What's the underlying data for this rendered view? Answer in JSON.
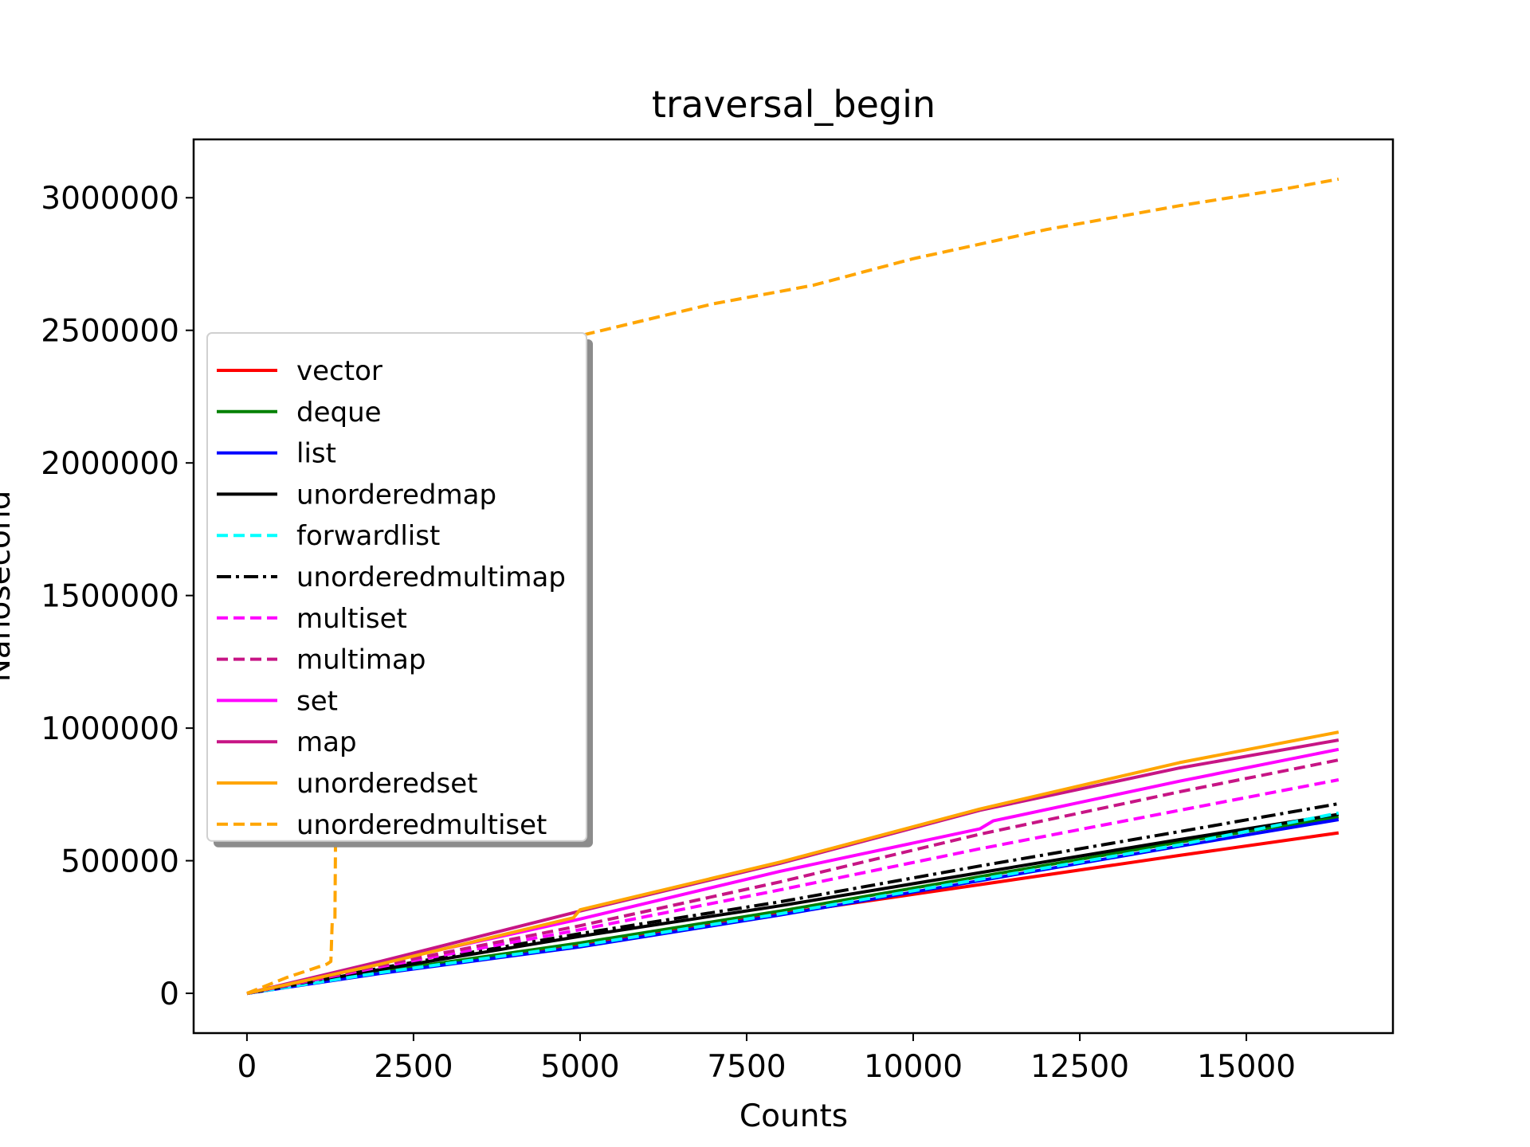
{
  "chart_data": {
    "type": "line",
    "title": "traversal_begin",
    "xlabel": "Counts",
    "ylabel": "Nanosecond",
    "xlim": [
      -800,
      17200
    ],
    "ylim": [
      -150000,
      3220000
    ],
    "xticks": [
      0,
      2500,
      5000,
      7500,
      10000,
      12500,
      15000
    ],
    "yticks": [
      0,
      500000,
      1000000,
      1500000,
      2000000,
      2500000,
      3000000
    ],
    "grid": false,
    "legend_position": "left",
    "series": [
      {
        "name": "vector",
        "color": "#ff0000",
        "dash": "solid",
        "x": [
          0,
          2000,
          5000,
          8000,
          11000,
          14000,
          16384
        ],
        "y": [
          0,
          80000,
          185000,
          300000,
          410000,
          520000,
          605000
        ]
      },
      {
        "name": "deque",
        "color": "#008000",
        "dash": "solid",
        "x": [
          0,
          2000,
          5000,
          8000,
          11000,
          14000,
          16384
        ],
        "y": [
          0,
          82000,
          190000,
          310000,
          440000,
          570000,
          665000
        ]
      },
      {
        "name": "list",
        "color": "#0000ff",
        "dash": "solid",
        "x": [
          0,
          2000,
          5000,
          8000,
          11000,
          14000,
          16384
        ],
        "y": [
          0,
          75000,
          175000,
          295000,
          425000,
          555000,
          655000
        ]
      },
      {
        "name": "unorderedmap",
        "color": "#000000",
        "dash": "solid",
        "x": [
          0,
          2000,
          5000,
          8000,
          11000,
          14000,
          16384
        ],
        "y": [
          0,
          90000,
          215000,
          330000,
          455000,
          580000,
          675000
        ]
      },
      {
        "name": "forwardlist",
        "color": "#00ffff",
        "dash": "dashed",
        "x": [
          0,
          2000,
          5000,
          8000,
          11000,
          14000,
          16384
        ],
        "y": [
          0,
          78000,
          180000,
          300000,
          430000,
          560000,
          680000
        ]
      },
      {
        "name": "unorderedmultimap",
        "color": "#000000",
        "dash": "dashdot",
        "x": [
          0,
          2000,
          5000,
          8000,
          11000,
          14000,
          16384
        ],
        "y": [
          0,
          95000,
          225000,
          345000,
          480000,
          610000,
          715000
        ]
      },
      {
        "name": "multiset",
        "color": "#ff00ff",
        "dash": "dashed",
        "x": [
          0,
          2000,
          5000,
          8000,
          11000,
          14000,
          16384
        ],
        "y": [
          0,
          100000,
          240000,
          390000,
          545000,
          690000,
          805000
        ]
      },
      {
        "name": "multimap",
        "color": "#c71585",
        "dash": "dashed",
        "x": [
          0,
          2000,
          5000,
          8000,
          11000,
          14000,
          16384
        ],
        "y": [
          0,
          105000,
          255000,
          420000,
          600000,
          760000,
          880000
        ]
      },
      {
        "name": "set",
        "color": "#ff00ff",
        "dash": "solid",
        "x": [
          0,
          2000,
          5000,
          8000,
          11000,
          11200,
          14000,
          16384
        ],
        "y": [
          0,
          115000,
          280000,
          460000,
          620000,
          650000,
          800000,
          920000
        ]
      },
      {
        "name": "map",
        "color": "#c71585",
        "dash": "solid",
        "x": [
          0,
          2000,
          5000,
          8000,
          11000,
          14000,
          16384
        ],
        "y": [
          0,
          120000,
          310000,
          490000,
          690000,
          850000,
          955000
        ]
      },
      {
        "name": "unorderedset",
        "color": "#ffa500",
        "dash": "solid",
        "x": [
          0,
          2000,
          4900,
          5000,
          8000,
          11000,
          14000,
          16384
        ],
        "y": [
          0,
          110000,
          285000,
          315000,
          495000,
          695000,
          870000,
          985000
        ]
      },
      {
        "name": "unorderedmultiset",
        "color": "#ffa500",
        "dash": "dashed",
        "x": [
          0,
          600,
          1200,
          1260,
          1280,
          1320,
          1330,
          1400,
          3000,
          5000,
          7000,
          8500,
          10000,
          12000,
          14000,
          15500,
          16384
        ],
        "y": [
          0,
          60000,
          110000,
          120000,
          270000,
          280000,
          600000,
          1200000,
          2200000,
          2480000,
          2600000,
          2670000,
          2770000,
          2880000,
          2970000,
          3030000,
          3070000
        ]
      }
    ]
  }
}
